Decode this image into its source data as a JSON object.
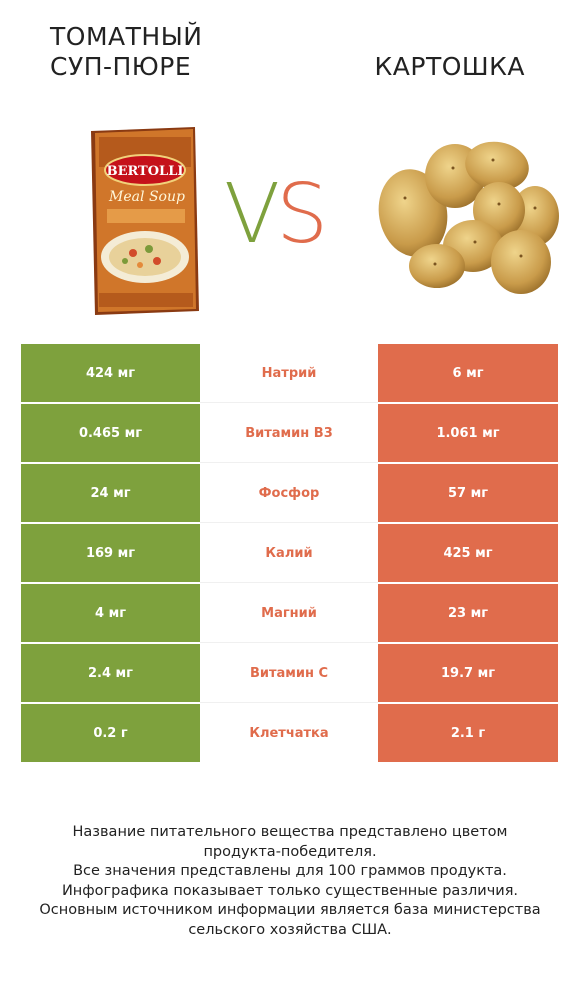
{
  "header": {
    "left_title": "ТОМАТНЫЙ\nСУП-ПЮРЕ",
    "right_title": "КАРТОШКА",
    "vs_v": "V",
    "vs_s": "S"
  },
  "colors": {
    "left_accent": "#7ea13d",
    "right_accent": "#e06c4c"
  },
  "images": {
    "left_box_brand": "BERTOLLI",
    "left_box_product": "Meal Soup"
  },
  "rows": [
    {
      "left": "424 мг",
      "label": "Натрий",
      "right": "6 мг",
      "winner": "left"
    },
    {
      "left": "0.465 мг",
      "label": "Витамин B3",
      "right": "1.061 мг",
      "winner": "right"
    },
    {
      "left": "24 мг",
      "label": "Фосфор",
      "right": "57 мг",
      "winner": "right"
    },
    {
      "left": "169 мг",
      "label": "Калий",
      "right": "425 мг",
      "winner": "right"
    },
    {
      "left": "4 мг",
      "label": "Магний",
      "right": "23 мг",
      "winner": "right"
    },
    {
      "left": "2.4 мг",
      "label": "Витамин C",
      "right": "19.7 мг",
      "winner": "right"
    },
    {
      "left": "0.2 г",
      "label": "Клетчатка",
      "right": "2.1 г",
      "winner": "right"
    }
  ],
  "footer": {
    "line1": "Название питательного вещества представлено цветом",
    "line2": "продукта-победителя.",
    "line3": "Все значения представлены для 100 граммов продукта.",
    "line4": "Инфографика показывает только существенные различия.",
    "line5": "Основным источником информации является база министерства",
    "line6": "сельского хозяйства США."
  }
}
